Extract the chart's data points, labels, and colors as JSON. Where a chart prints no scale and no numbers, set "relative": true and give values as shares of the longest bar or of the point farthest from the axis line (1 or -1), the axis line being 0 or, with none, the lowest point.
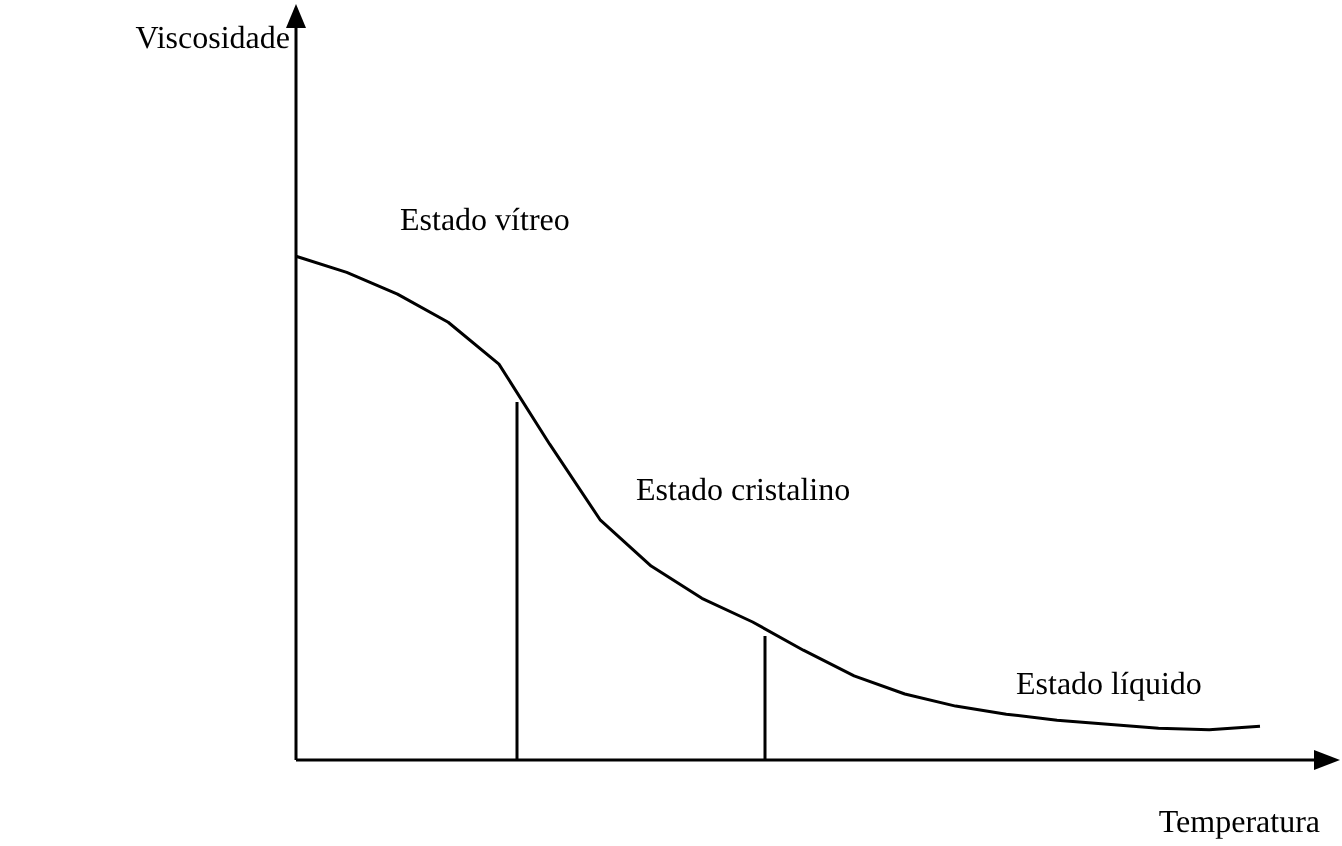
{
  "chart_data": {
    "type": "line",
    "relative": true,
    "xlabel": "Temperatura",
    "marker": "none",
    "line_style": "solid",
    "categories": [
      null,
      null,
      null,
      null,
      null,
      null,
      null,
      null,
      null,
      null,
      null,
      null,
      null,
      null,
      null,
      null,
      null,
      null,
      null,
      null
    ],
    "series": [
      {
        "color": "#000000",
        "values": [
          1,
          0.968,
          0.925,
          0.869,
          0.786,
          0.627,
          0.476,
          0.385,
          0.321,
          0.274,
          0.218,
          0.167,
          0.131,
          0.107,
          0.091,
          0.079,
          0.071,
          0.063,
          0.06,
          0.067
        ]
      }
    ],
    "annotations": [
      "Viscosidade",
      "Estado vítreo",
      "Estado cristalino",
      "Estado líquido"
    ]
  }
}
